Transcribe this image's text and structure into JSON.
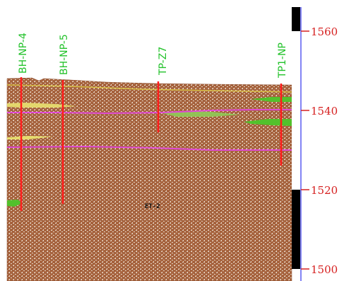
{
  "section": {
    "boreholes": [
      {
        "name": "BH-NP-4",
        "top_elev": 1547.0,
        "bottom_elev": 1515.0
      },
      {
        "name": "BH-NP-5",
        "top_elev": 1546.5,
        "bottom_elev": 1516.3
      },
      {
        "name": "TP-Z7",
        "top_elev": 1546.3,
        "bottom_elev": 1534.5
      },
      {
        "name": "TP1-NP",
        "top_elev": 1545.7,
        "bottom_elev": 1526.7
      }
    ],
    "elevation_ticks": [
      "1560",
      "1540",
      "1520",
      "1500"
    ],
    "unit_label": "ET-2",
    "colors": {
      "soil_fill": "#a7643f",
      "soil_speckle": "#e6d2c0",
      "borehole": "#ff1a1a",
      "label_green": "#22c22a",
      "contact_magenta": "#e14bd6",
      "contact_yellow": "#d9c24a",
      "lens_green": "#52c12c",
      "lens_yellow": "#e6dc6e",
      "scale_red": "#d62020",
      "scale_blue": "#5a5cf0"
    }
  }
}
